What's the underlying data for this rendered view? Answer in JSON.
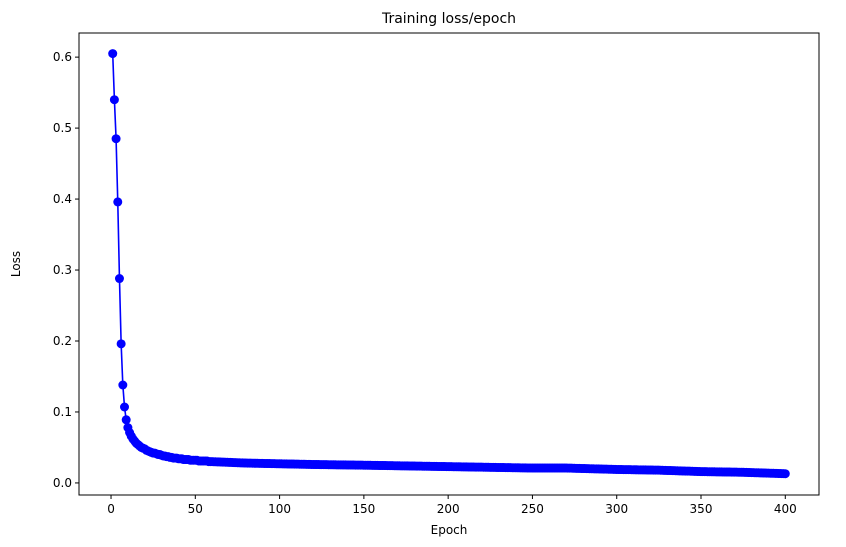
{
  "chart_data": {
    "type": "line",
    "title": "Training loss/epoch",
    "xlabel": "Epoch",
    "ylabel": "Loss",
    "xlim": [
      -19,
      420
    ],
    "ylim": [
      -0.017,
      0.634
    ],
    "xticks": [
      0,
      50,
      100,
      150,
      200,
      250,
      300,
      350,
      400
    ],
    "yticks": [
      0.0,
      0.1,
      0.2,
      0.3,
      0.4,
      0.5,
      0.6
    ],
    "ytick_labels": [
      "0.0",
      "0.1",
      "0.2",
      "0.3",
      "0.4",
      "0.5",
      "0.6"
    ],
    "series": [
      {
        "name": "Training loss",
        "color": "#0000ff",
        "marker": "circle",
        "x_start": 1,
        "x_step": 1,
        "values": [
          0.605,
          0.54,
          0.485,
          0.396,
          0.288,
          0.196,
          0.138,
          0.107,
          0.089,
          0.078,
          0.071,
          0.066,
          0.062,
          0.059,
          0.056,
          0.054,
          0.052,
          0.05,
          0.049,
          0.048,
          0.046,
          0.045,
          0.044,
          0.043,
          0.042,
          0.042,
          0.041,
          0.04,
          0.04,
          0.039,
          0.038,
          0.038,
          0.037,
          0.037,
          0.036,
          0.036,
          0.035,
          0.035,
          0.035,
          0.034,
          0.034,
          0.034,
          0.033,
          0.033,
          0.033,
          0.033,
          0.032,
          0.032,
          0.032,
          0.032,
          0.032,
          0.031,
          0.031,
          0.031,
          0.031,
          0.031,
          0.031,
          0.03,
          0.03,
          0.03
        ],
        "tail_points": [
          [
            60,
            0.03
          ],
          [
            80,
            0.028
          ],
          [
            100,
            0.027
          ],
          [
            120,
            0.026
          ],
          [
            150,
            0.025
          ],
          [
            175,
            0.024
          ],
          [
            200,
            0.023
          ],
          [
            225,
            0.022
          ],
          [
            250,
            0.021
          ],
          [
            270,
            0.021
          ],
          [
            300,
            0.019
          ],
          [
            325,
            0.018
          ],
          [
            350,
            0.016
          ],
          [
            375,
            0.015
          ],
          [
            400,
            0.013
          ]
        ]
      }
    ]
  }
}
